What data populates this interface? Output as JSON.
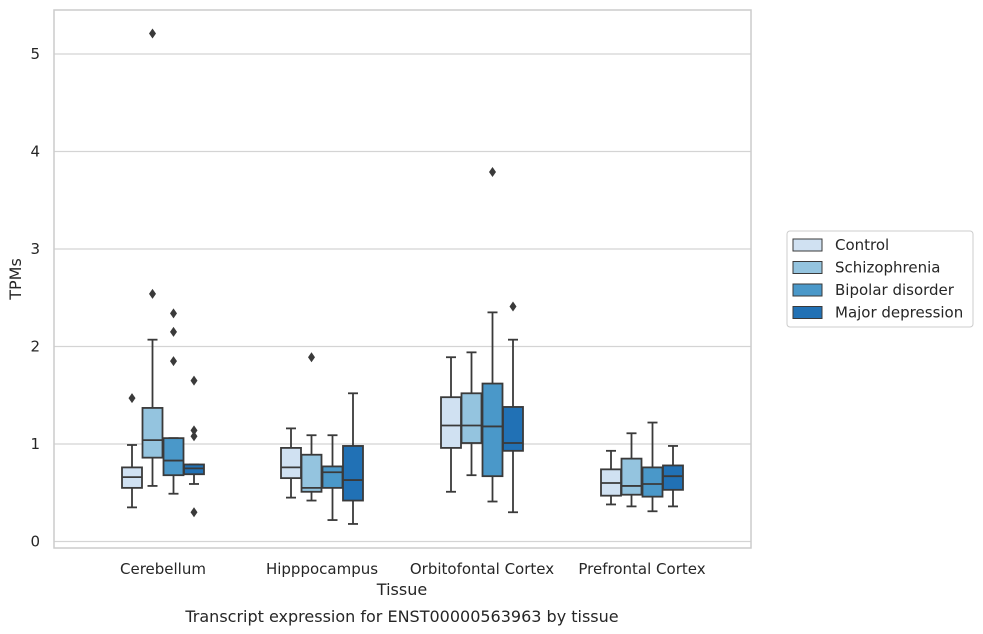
{
  "chart_data": {
    "type": "box",
    "title": "",
    "caption": "Transcript expression for ENST00000563963 by tissue",
    "xlabel": "Tissue",
    "ylabel": "TPMs",
    "ylim": [
      -0.07,
      5.45
    ],
    "yticks": [
      0,
      1,
      2,
      3,
      4,
      5
    ],
    "grid": true,
    "legend_position": "right",
    "categories": [
      "Cerebellum",
      "Hipppocampus",
      "Orbitofontal Cortex",
      "Prefrontal Cortex"
    ],
    "series": [
      {
        "name": "Control",
        "color": "#d0e1f2",
        "boxes": [
          {
            "whislo": 0.35,
            "q1": 0.55,
            "med": 0.66,
            "q3": 0.76,
            "whishi": 0.99,
            "fliers": [
              1.47
            ]
          },
          {
            "whislo": 0.45,
            "q1": 0.65,
            "med": 0.76,
            "q3": 0.96,
            "whishi": 1.16,
            "fliers": []
          },
          {
            "whislo": 0.51,
            "q1": 0.96,
            "med": 1.19,
            "q3": 1.48,
            "whishi": 1.89,
            "fliers": []
          },
          {
            "whislo": 0.38,
            "q1": 0.47,
            "med": 0.6,
            "q3": 0.74,
            "whishi": 0.93,
            "fliers": []
          }
        ]
      },
      {
        "name": "Schizophrenia",
        "color": "#94c4df",
        "boxes": [
          {
            "whislo": 0.57,
            "q1": 0.86,
            "med": 1.04,
            "q3": 1.37,
            "whishi": 2.07,
            "fliers": [
              2.54,
              5.21
            ]
          },
          {
            "whislo": 0.42,
            "q1": 0.51,
            "med": 0.55,
            "q3": 0.89,
            "whishi": 1.09,
            "fliers": [
              1.89
            ]
          },
          {
            "whislo": 0.68,
            "q1": 1.01,
            "med": 1.19,
            "q3": 1.52,
            "whishi": 1.94,
            "fliers": []
          },
          {
            "whislo": 0.36,
            "q1": 0.48,
            "med": 0.57,
            "q3": 0.85,
            "whishi": 1.11,
            "fliers": []
          }
        ]
      },
      {
        "name": "Bipolar disorder",
        "color": "#4a98c9",
        "boxes": [
          {
            "whislo": 0.49,
            "q1": 0.68,
            "med": 0.83,
            "q3": 1.06,
            "whishi": 1.06,
            "fliers": [
              1.85,
              2.15,
              2.34
            ]
          },
          {
            "whislo": 0.22,
            "q1": 0.55,
            "med": 0.71,
            "q3": 0.77,
            "whishi": 1.09,
            "fliers": []
          },
          {
            "whislo": 0.41,
            "q1": 0.67,
            "med": 1.18,
            "q3": 1.62,
            "whishi": 2.35,
            "fliers": [
              3.79
            ]
          },
          {
            "whislo": 0.31,
            "q1": 0.46,
            "med": 0.59,
            "q3": 0.76,
            "whishi": 1.22,
            "fliers": []
          }
        ]
      },
      {
        "name": "Major depression",
        "color": "#2171b5",
        "boxes": [
          {
            "whislo": 0.59,
            "q1": 0.69,
            "med": 0.75,
            "q3": 0.79,
            "whishi": 0.79,
            "fliers": [
              0.3,
              1.08,
              1.14,
              1.65
            ]
          },
          {
            "whislo": 0.18,
            "q1": 0.42,
            "med": 0.63,
            "q3": 0.98,
            "whishi": 1.52,
            "fliers": []
          },
          {
            "whislo": 0.3,
            "q1": 0.93,
            "med": 1.01,
            "q3": 1.38,
            "whishi": 2.07,
            "fliers": [
              2.41
            ]
          },
          {
            "whislo": 0.36,
            "q1": 0.53,
            "med": 0.67,
            "q3": 0.78,
            "whishi": 0.98,
            "fliers": []
          }
        ]
      }
    ]
  }
}
